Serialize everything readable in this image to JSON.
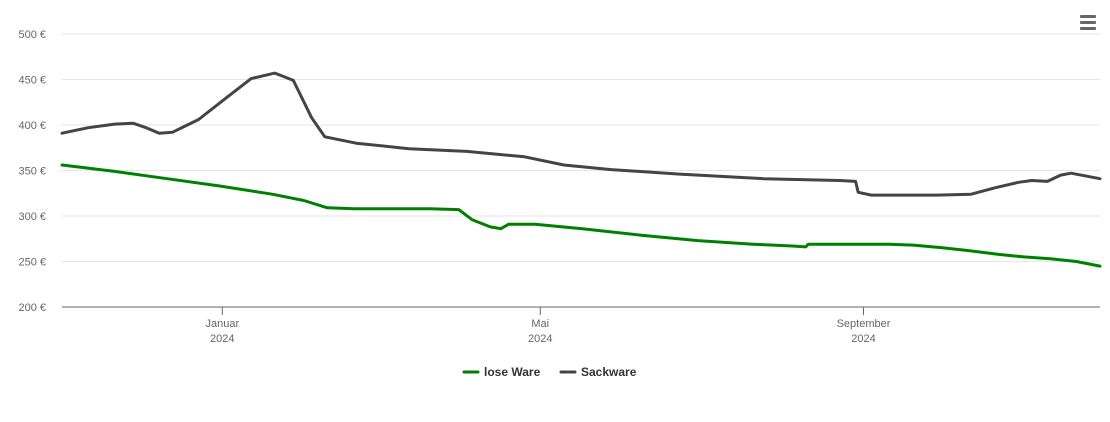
{
  "menu": {
    "icon": "hamburger-menu-icon"
  },
  "chart_data": {
    "type": "line",
    "title": "",
    "xlabel": "",
    "ylabel": "",
    "ylim": [
      200,
      500
    ],
    "xlim": [
      "2023-11-01",
      "2024-11-30"
    ],
    "grid": "horizontal",
    "legend_position": "bottom-center",
    "y_ticks": [
      {
        "value": 200,
        "label": "200 €"
      },
      {
        "value": 250,
        "label": "250 €"
      },
      {
        "value": 300,
        "label": "300 €"
      },
      {
        "value": 350,
        "label": "350 €"
      },
      {
        "value": 400,
        "label": "400 €"
      },
      {
        "value": 450,
        "label": "450 €"
      },
      {
        "value": 500,
        "label": "500 €"
      }
    ],
    "x_ticks": [
      {
        "date": "2024-01-01",
        "label": "Januar",
        "sublabel": "2024"
      },
      {
        "date": "2024-05-01",
        "label": "Mai",
        "sublabel": "2024"
      },
      {
        "date": "2024-09-01",
        "label": "September",
        "sublabel": "2024"
      }
    ],
    "series": [
      {
        "name": "lose Ware",
        "color": "#008000",
        "points": [
          [
            "2023-11-01",
            356
          ],
          [
            "2023-11-21",
            349
          ],
          [
            "2023-12-11",
            341
          ],
          [
            "2023-12-31",
            333
          ],
          [
            "2024-01-20",
            324
          ],
          [
            "2024-02-01",
            317
          ],
          [
            "2024-02-10",
            309
          ],
          [
            "2024-02-20",
            308
          ],
          [
            "2024-03-20",
            308
          ],
          [
            "2024-03-31",
            307
          ],
          [
            "2024-04-05",
            296
          ],
          [
            "2024-04-12",
            288
          ],
          [
            "2024-04-16",
            286
          ],
          [
            "2024-04-19",
            291
          ],
          [
            "2024-04-29",
            291
          ],
          [
            "2024-05-17",
            286
          ],
          [
            "2024-06-08",
            279
          ],
          [
            "2024-06-30",
            273
          ],
          [
            "2024-07-21",
            269
          ],
          [
            "2024-08-05",
            267
          ],
          [
            "2024-08-10",
            266
          ],
          [
            "2024-08-11",
            269
          ],
          [
            "2024-08-31",
            269
          ],
          [
            "2024-09-10",
            269
          ],
          [
            "2024-09-20",
            268
          ],
          [
            "2024-10-01",
            265
          ],
          [
            "2024-10-11",
            262
          ],
          [
            "2024-10-22",
            258
          ],
          [
            "2024-11-01",
            255
          ],
          [
            "2024-11-11",
            253
          ],
          [
            "2024-11-21",
            250
          ],
          [
            "2024-11-30",
            245
          ]
        ]
      },
      {
        "name": "Sackware",
        "color": "#444444",
        "points": [
          [
            "2023-11-01",
            391
          ],
          [
            "2023-11-11",
            397
          ],
          [
            "2023-11-21",
            401
          ],
          [
            "2023-11-28",
            402
          ],
          [
            "2023-12-03",
            397
          ],
          [
            "2023-12-08",
            391
          ],
          [
            "2023-12-13",
            392
          ],
          [
            "2023-12-23",
            406
          ],
          [
            "2024-01-03",
            431
          ],
          [
            "2024-01-12",
            451
          ],
          [
            "2024-01-21",
            457
          ],
          [
            "2024-01-28",
            449
          ],
          [
            "2024-02-04",
            408
          ],
          [
            "2024-02-09",
            387
          ],
          [
            "2024-02-21",
            380
          ],
          [
            "2024-03-12",
            374
          ],
          [
            "2024-04-03",
            371
          ],
          [
            "2024-04-25",
            365
          ],
          [
            "2024-05-10",
            356
          ],
          [
            "2024-05-28",
            351
          ],
          [
            "2024-06-23",
            346
          ],
          [
            "2024-07-25",
            341
          ],
          [
            "2024-08-23",
            339
          ],
          [
            "2024-08-29",
            338
          ],
          [
            "2024-08-30",
            326
          ],
          [
            "2024-09-04",
            323
          ],
          [
            "2024-09-29",
            323
          ],
          [
            "2024-10-12",
            324
          ],
          [
            "2024-10-21",
            331
          ],
          [
            "2024-10-30",
            337
          ],
          [
            "2024-11-04",
            339
          ],
          [
            "2024-11-10",
            338
          ],
          [
            "2024-11-15",
            345
          ],
          [
            "2024-11-19",
            347
          ],
          [
            "2024-11-30",
            341
          ]
        ]
      }
    ]
  }
}
